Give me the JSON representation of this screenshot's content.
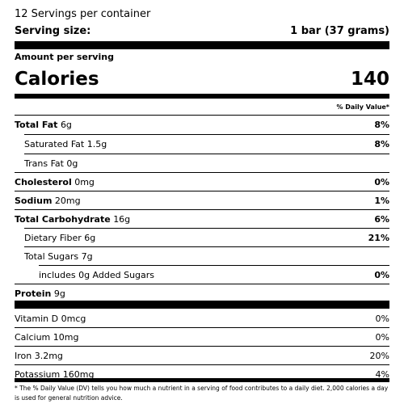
{
  "header": {
    "servings": "12 Servings per container",
    "serving_size_label": "Serving size:",
    "serving_size_value": "1 bar (37 grams)"
  },
  "amount_per_serving": "Amount per serving",
  "calories": {
    "label": "Calories",
    "value": "140"
  },
  "dv_header": "% Daily Value*",
  "nutrients": [
    {
      "label": "Total Fat",
      "amount": "6g",
      "dv": "8%"
    },
    {
      "label": "Saturated Fat 1.5g",
      "amount": "",
      "dv": "8%"
    },
    {
      "label": "Trans Fat 0g",
      "amount": "",
      "dv": ""
    },
    {
      "label": "Cholesterol",
      "amount": "0mg",
      "dv": "0%"
    },
    {
      "label": "Sodium",
      "amount": "20mg",
      "dv": "1%"
    },
    {
      "label": "Total Carbohydrate",
      "amount": "16g",
      "dv": "6%"
    },
    {
      "label": "Dietary Fiber 6g",
      "amount": "",
      "dv": "21%"
    },
    {
      "label": "Total Sugars 7g",
      "amount": "",
      "dv": ""
    },
    {
      "label": "includes 0g Added Sugars",
      "amount": "",
      "dv": "0%"
    },
    {
      "label": "Protein",
      "amount": "9g",
      "dv": ""
    }
  ],
  "vitamins": [
    {
      "label": "Vitamin D 0mcg",
      "dv": "0%"
    },
    {
      "label": "Calcium 10mg",
      "dv": "0%"
    },
    {
      "label": "Iron 3.2mg",
      "dv": "20%"
    },
    {
      "label": "Potassium 160mg",
      "dv": "4%"
    }
  ],
  "footnote": "* The % Daily Value (DV) tells you how much a nutrient in a serving of food contributes to a daily diet. 2,000 calories a day is used for general nutrition advice."
}
